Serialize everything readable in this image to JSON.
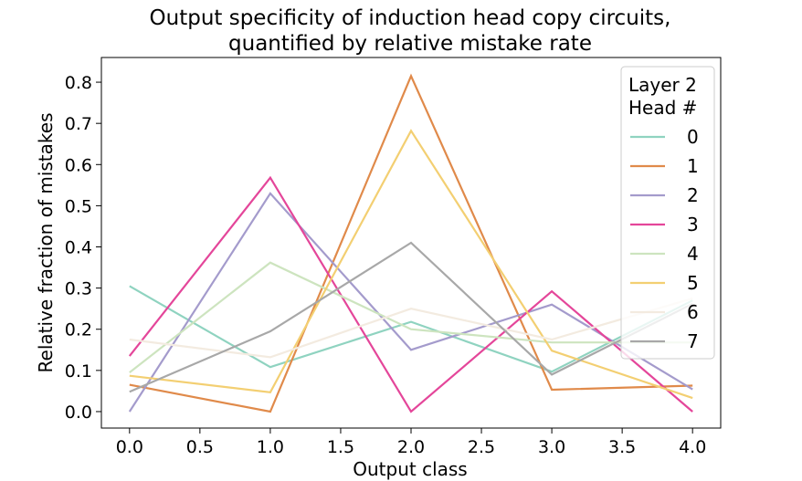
{
  "chart_data": {
    "type": "line",
    "title_lines": [
      "Output specificity of induction head copy circuits,",
      "quantified by relative mistake rate"
    ],
    "xlabel": "Output class",
    "ylabel": "Relative fraction of mistakes",
    "x": [
      0.0,
      1.0,
      2.0,
      3.0,
      4.0
    ],
    "xlim": [
      -0.2,
      4.2
    ],
    "ylim": [
      -0.04,
      0.86
    ],
    "xticks": [
      0.0,
      0.5,
      1.0,
      1.5,
      2.0,
      2.5,
      3.0,
      3.5,
      4.0
    ],
    "xtick_labels": [
      "0.0",
      "0.5",
      "1.0",
      "1.5",
      "2.0",
      "2.5",
      "3.0",
      "3.5",
      "4.0"
    ],
    "yticks": [
      0.0,
      0.1,
      0.2,
      0.3,
      0.4,
      0.5,
      0.6,
      0.7,
      0.8
    ],
    "ytick_labels": [
      "0.0",
      "0.1",
      "0.2",
      "0.3",
      "0.4",
      "0.5",
      "0.6",
      "0.7",
      "0.8"
    ],
    "grid": false,
    "legend": {
      "placement": "top-right",
      "title_lines": [
        "Layer 2",
        "Head #"
      ]
    },
    "series": [
      {
        "name": "0",
        "color": "#8fd3c0",
        "values": [
          0.305,
          0.108,
          0.218,
          0.097,
          0.27
        ]
      },
      {
        "name": "1",
        "color": "#e08a4a",
        "values": [
          0.065,
          0.0,
          0.815,
          0.053,
          0.063
        ]
      },
      {
        "name": "2",
        "color": "#a49bcc",
        "values": [
          0.0,
          0.53,
          0.15,
          0.26,
          0.054
        ]
      },
      {
        "name": "3",
        "color": "#e4469a",
        "values": [
          0.135,
          0.568,
          0.0,
          0.292,
          0.0
        ]
      },
      {
        "name": "4",
        "color": "#cde4bf",
        "values": [
          0.095,
          0.362,
          0.2,
          0.168,
          0.168
        ]
      },
      {
        "name": "5",
        "color": "#f3cf72",
        "values": [
          0.087,
          0.047,
          0.682,
          0.148,
          0.033
        ]
      },
      {
        "name": "6",
        "color": "#f3ebe0",
        "values": [
          0.175,
          0.132,
          0.25,
          0.175,
          0.275
        ]
      },
      {
        "name": "7",
        "color": "#a8a8a8",
        "values": [
          0.048,
          0.195,
          0.41,
          0.09,
          0.262
        ]
      }
    ]
  }
}
